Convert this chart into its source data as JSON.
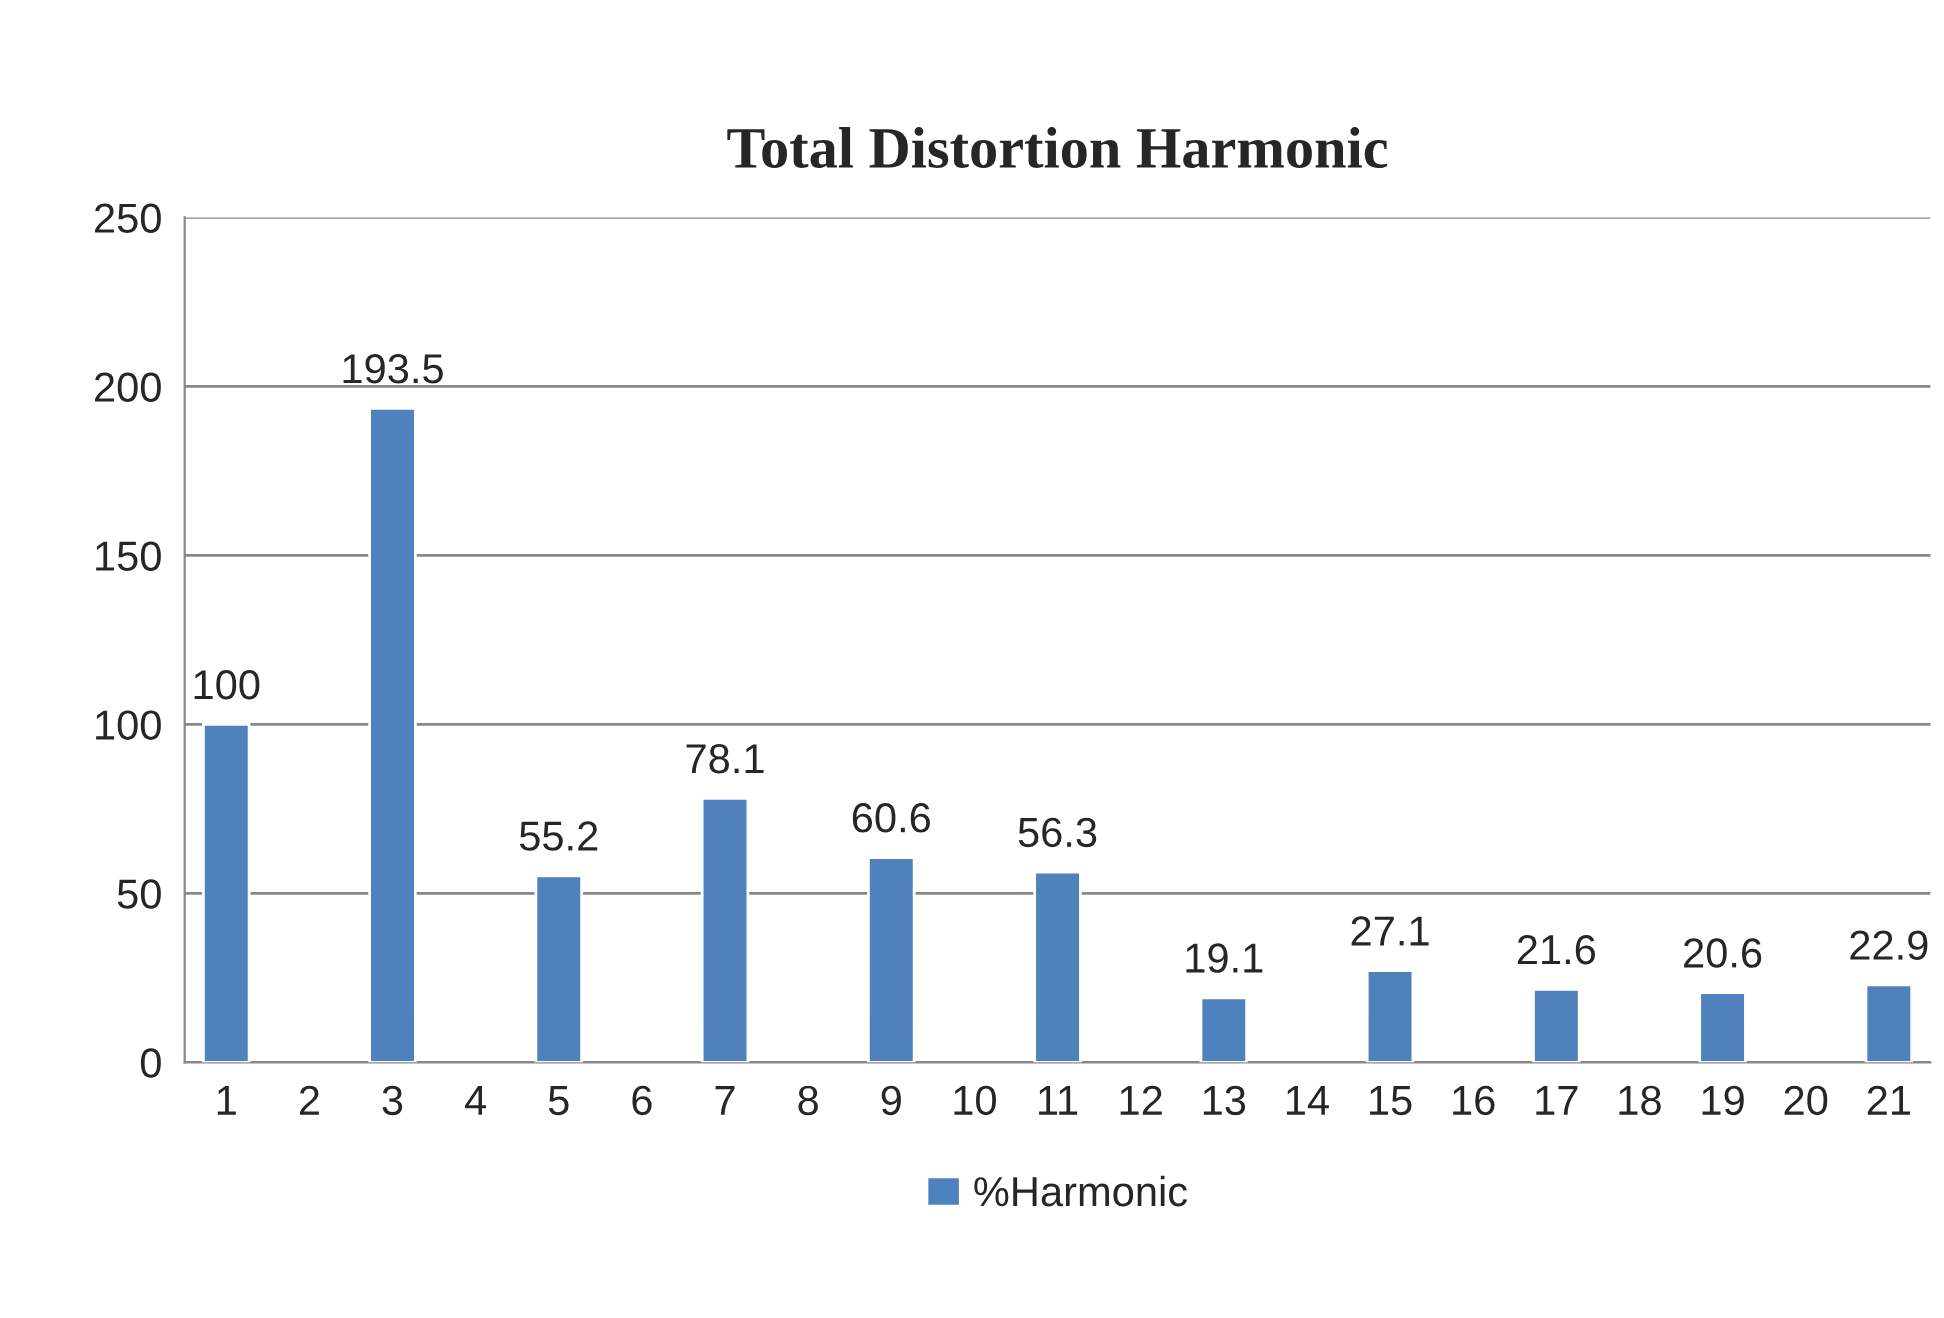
{
  "chart_data": {
    "type": "bar",
    "title": "Total Distortion Harmonic",
    "categories": [
      "1",
      "2",
      "3",
      "4",
      "5",
      "6",
      "7",
      "8",
      "9",
      "10",
      "11",
      "12",
      "13",
      "14",
      "15",
      "16",
      "17",
      "18",
      "19",
      "20",
      "21"
    ],
    "series": [
      {
        "name": "%Harmonic",
        "color": "#4f81bd",
        "values": [
          100,
          null,
          193.5,
          null,
          55.2,
          null,
          78.1,
          null,
          60.6,
          null,
          56.3,
          null,
          19.1,
          null,
          27.1,
          null,
          21.6,
          null,
          20.6,
          null,
          22.9
        ]
      }
    ],
    "ylim": [
      0,
      250
    ],
    "yticks": [
      0,
      50,
      100,
      150,
      200,
      250
    ],
    "grid": "y",
    "legend": "bottom",
    "data_labels": true
  }
}
